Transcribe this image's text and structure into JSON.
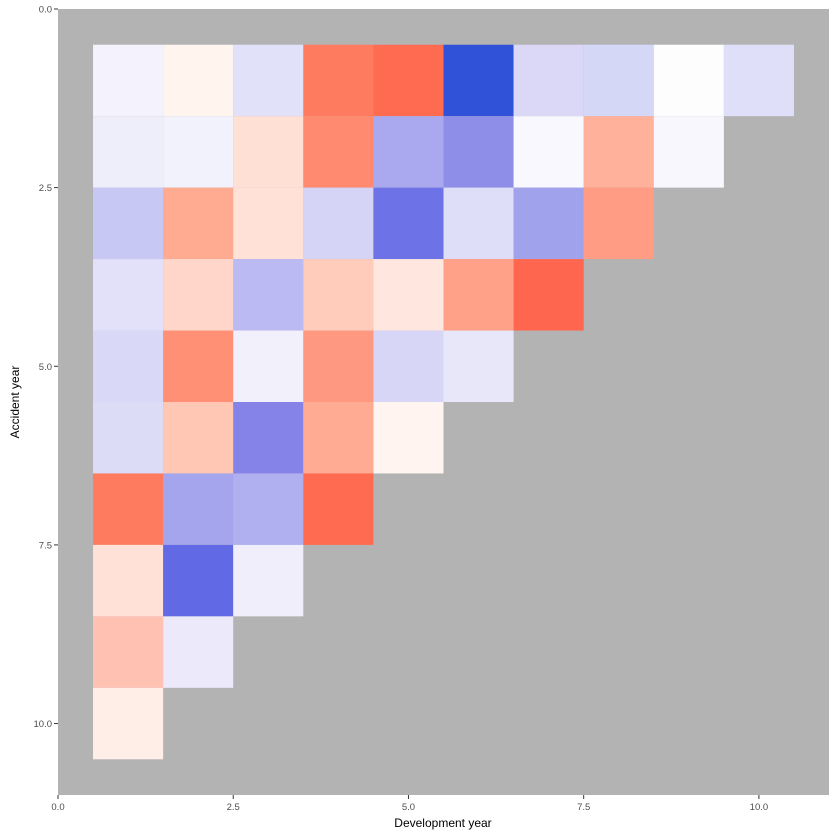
{
  "chart_data": {
    "type": "heatmap",
    "title": "",
    "xlabel": "Development year",
    "ylabel": "Accident year",
    "xlim": [
      0,
      11
    ],
    "ylim": [
      0,
      11
    ],
    "y_reversed": true,
    "x_ticks": [
      "0.0",
      "2.5",
      "5.0",
      "7.5",
      "10.0"
    ],
    "y_ticks": [
      "0.0",
      "2.5",
      "5.0",
      "7.5",
      "10.0"
    ],
    "x_tick_values": [
      0,
      2.5,
      5,
      7.5,
      10
    ],
    "y_tick_values": [
      0,
      2.5,
      5,
      7.5,
      10
    ],
    "panel_background": "#b3b3b3",
    "grid": false,
    "legend": "none",
    "cells_fill": [
      [
        "#f3f2fd",
        "#fff4ee",
        "#e2e1fa",
        "#ff7b5f",
        "#ff6b50",
        "#3052d8",
        "#dbd8f7",
        "#d5d7f6",
        "#fdfdfe",
        "#e0dff9"
      ],
      [
        "#eeedfa",
        "#f2f2fd",
        "#ffe0d5",
        "#ff8a6f",
        "#aaa9ef",
        "#8e8ee8",
        "#f9f8fe",
        "#ffb19c",
        "#f8f7fe"
      ],
      [
        "#c8c8f4",
        "#ffab92",
        "#ffe1d7",
        "#d5d4f6",
        "#6d73e6",
        "#dfdef8",
        "#a0a2ec",
        "#ff9c83"
      ],
      [
        "#e3e0fa",
        "#ffd6c9",
        "#bcbaf2",
        "#ffcbba",
        "#ffe7df",
        "#ffa088",
        "#ff6650"
      ],
      [
        "#dad8f7",
        "#ff8f75",
        "#f2f1fb",
        "#ff9880",
        "#d8d6f7",
        "#e8e7f9"
      ],
      [
        "#dcdcf7",
        "#ffc7b4",
        "#8583e8",
        "#ffab94",
        "#fff4f0"
      ],
      [
        "#ff7b5f",
        "#a5a5ed",
        "#b0aff0",
        "#ff6b50"
      ],
      [
        "#ffe1d8",
        "#616ae4",
        "#efeefa"
      ],
      [
        "#ffc2b2",
        "#ebe9fa"
      ],
      [
        "#ffeee7"
      ]
    ]
  }
}
